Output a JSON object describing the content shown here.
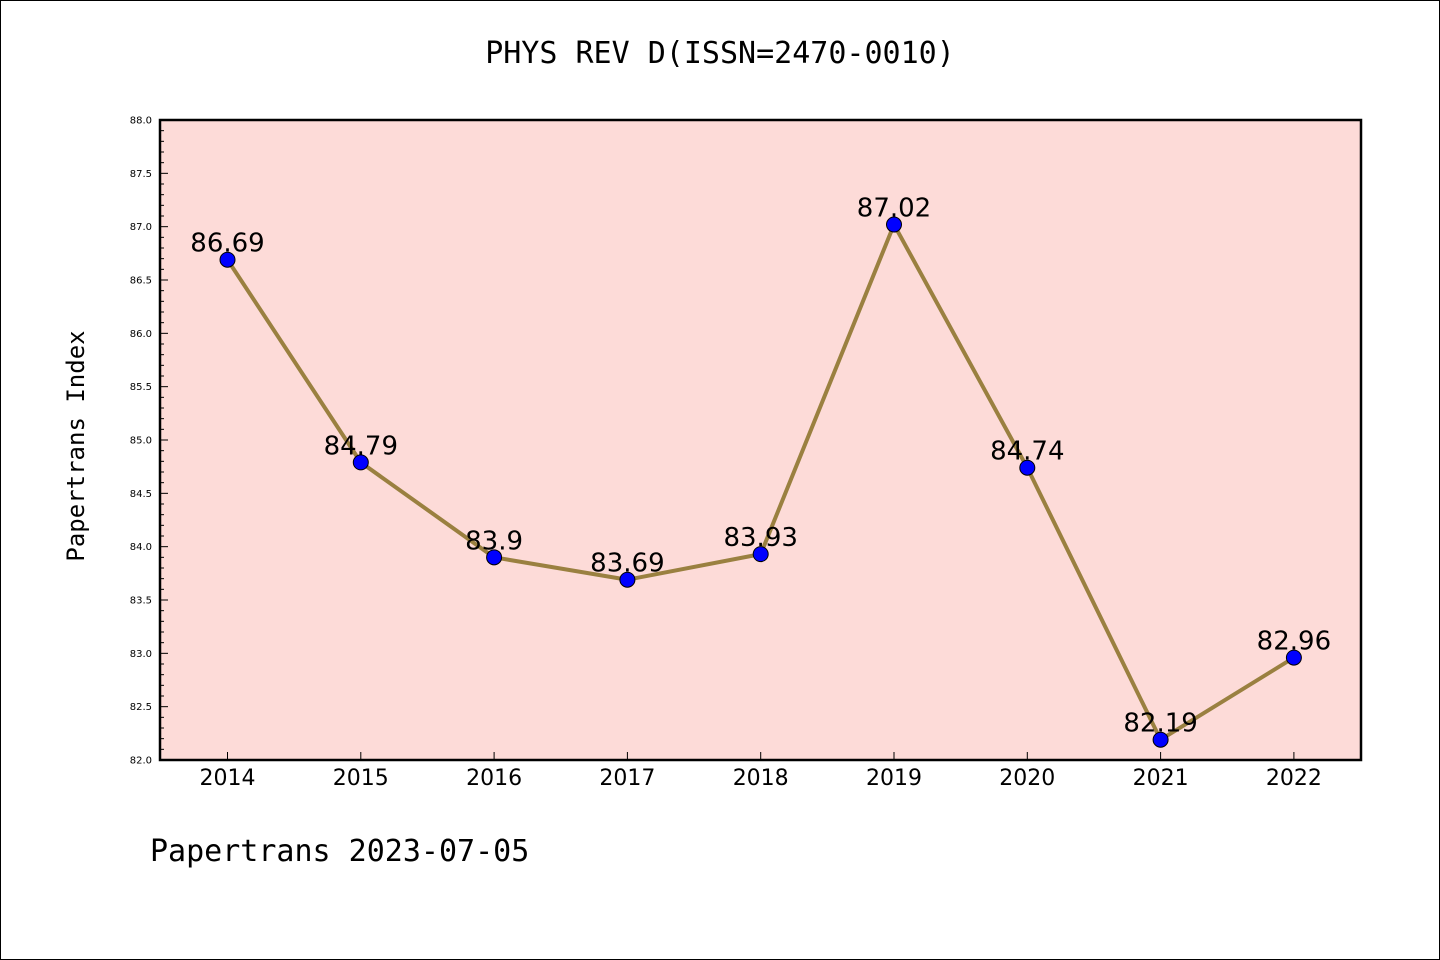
{
  "title": "PHYS REV D(ISSN=2470-0010)",
  "footer": "Papertrans 2023-07-05",
  "colors": {
    "plot_background": "#fddbd8",
    "line": "#9a8040",
    "marker": "#0000ff"
  },
  "chart_data": {
    "type": "line",
    "title": "PHYS REV D(ISSN=2470-0010)",
    "xlabel": "",
    "ylabel": "Papertrans Index",
    "categories": [
      "2014",
      "2015",
      "2016",
      "2017",
      "2018",
      "2019",
      "2020",
      "2021",
      "2022"
    ],
    "values": [
      86.69,
      84.79,
      83.9,
      83.69,
      83.93,
      87.02,
      84.74,
      82.19,
      82.96
    ],
    "data_labels": [
      "86.69",
      "84.79",
      "83.9",
      "83.69",
      "83.93",
      "87.02",
      "84.74",
      "82.19",
      "82.96"
    ],
    "ylim": [
      82.0,
      88.0
    ],
    "yticks": [
      "82.0",
      "82.5",
      "83.0",
      "83.5",
      "84.0",
      "84.5",
      "85.0",
      "85.5",
      "86.0",
      "86.5",
      "87.0",
      "87.5",
      "88.0"
    ],
    "grid": false,
    "legend": "none"
  }
}
